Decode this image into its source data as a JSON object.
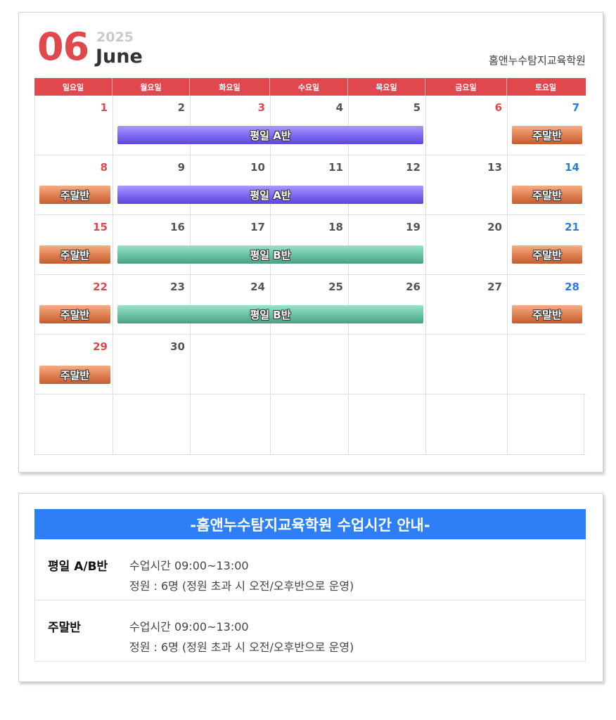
{
  "header": {
    "month_number": "06",
    "year": "2025",
    "month_name": "June",
    "academy": "홈앤누수탐지교육학원"
  },
  "weekdays": [
    "일요일",
    "월요일",
    "화요일",
    "수요일",
    "목요일",
    "금요일",
    "토요일"
  ],
  "weeks": [
    [
      "1",
      "2",
      "3",
      "4",
      "5",
      "6",
      "7"
    ],
    [
      "8",
      "9",
      "10",
      "11",
      "12",
      "13",
      "14"
    ],
    [
      "15",
      "16",
      "17",
      "18",
      "19",
      "20",
      "21"
    ],
    [
      "22",
      "23",
      "24",
      "25",
      "26",
      "27",
      "28"
    ],
    [
      "29",
      "30",
      "",
      "",
      "",
      "",
      ""
    ],
    [
      "",
      "",
      "",
      "",
      "",
      "",
      ""
    ]
  ],
  "holiday_dates": [
    "3",
    "6"
  ],
  "events": {
    "weekday_a": "평일 A반",
    "weekday_b": "평일 B반",
    "weekend": "주말반"
  },
  "colors": {
    "accent_red": "#e0484d",
    "saturday_blue": "#2a7de1",
    "info_header_blue": "#2d7ff5",
    "class_a_purple": "#7c67f1",
    "class_b_green": "#69c1a3",
    "weekend_orange": "#df7e50"
  },
  "info": {
    "title": "-홈앤누수탐지교육학원 수업시간 안내-",
    "rows": [
      {
        "label": "평일 A/B반",
        "time": "수업시간 09:00~13:00",
        "capacity": "정원 : 6명 (정원 초과 시 오전/오후반으로 운영)"
      },
      {
        "label": "주말반",
        "time": "수업시간 09:00~13:00",
        "capacity": "정원 : 6명 (정원 초과 시 오전/오후반으로 운영)"
      }
    ]
  }
}
